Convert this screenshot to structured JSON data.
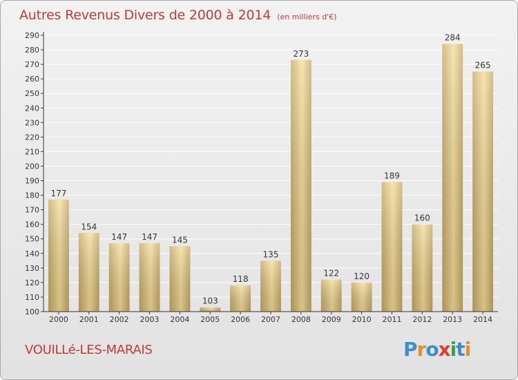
{
  "header": {
    "title": "Autres Revenus Divers de 2000 à 2014",
    "unit": "(en milliers d'€)"
  },
  "footer": {
    "commune": "VOUILLé-LES-MARAIS",
    "logo_text": "Proxiti"
  },
  "colors": {
    "title": "#c0393b",
    "bar_light": "#f5dc98",
    "bar_dark": "#c4a864",
    "grid": "#ffffff",
    "axis": "#333333",
    "logo": [
      "#3b8fd0",
      "#e98d26",
      "#3b8fd0",
      "#e23a2f",
      "#3aa14a",
      "#3b8fd0",
      "#e98d26"
    ]
  },
  "chart_data": {
    "type": "bar",
    "categories": [
      "2000",
      "2001",
      "2002",
      "2003",
      "2004",
      "2005",
      "2006",
      "2007",
      "2008",
      "2009",
      "2010",
      "2011",
      "2012",
      "2013",
      "2014"
    ],
    "values": [
      177,
      154,
      147,
      147,
      145,
      103,
      118,
      135,
      273,
      122,
      120,
      189,
      160,
      284,
      265
    ],
    "value_labels": [
      "177",
      "154",
      "147",
      "147",
      "145",
      "103",
      "118",
      "135",
      "273",
      "122",
      "120",
      "189",
      "160",
      "284",
      "265"
    ],
    "title": "Autres Revenus Divers de 2000 à 2014",
    "xlabel": "",
    "ylabel": "",
    "ylim": [
      100,
      290
    ],
    "yticks": [
      "100",
      "110",
      "120",
      "130",
      "140",
      "150",
      "160",
      "170",
      "180",
      "190",
      "200",
      "210",
      "220",
      "230",
      "240",
      "250",
      "260",
      "270",
      "280",
      "290"
    ],
    "grid": true
  }
}
